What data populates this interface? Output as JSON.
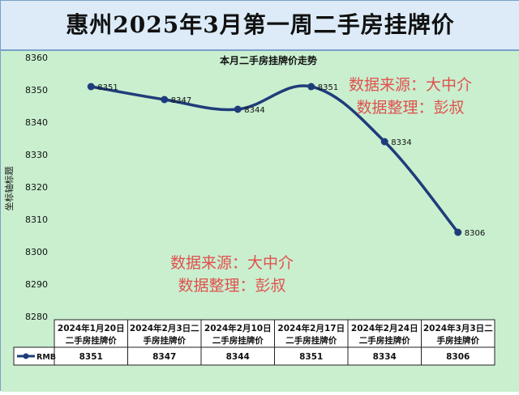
{
  "page": {
    "title": "惠州2025年3月第一周二手房挂牌价"
  },
  "watermarks": [
    {
      "line1": "数据来源：大中介",
      "line2": "数据整理：彭叔"
    },
    {
      "line1": "数据来源：大中介",
      "line2": "数据整理：彭叔"
    }
  ],
  "colors": {
    "line": "#1f3c7a",
    "background": "#c9efcf",
    "header_bg": "#dcebf7",
    "watermark": "#e0514d"
  },
  "chart_data": {
    "type": "line",
    "title": "本月二手房挂牌价走势",
    "ylabel": "坐标轴标题",
    "xlabel": "",
    "ylim": [
      8280,
      8360
    ],
    "yticks": [
      8280,
      8290,
      8300,
      8310,
      8320,
      8330,
      8340,
      8350,
      8360
    ],
    "grid": false,
    "legend": "table-left",
    "categories": [
      [
        "2024年1月20日",
        "二手房挂牌价"
      ],
      [
        "2024年2月3日二",
        "手房挂牌价"
      ],
      [
        "2024年2月10日",
        "二手房挂牌价"
      ],
      [
        "2024年2月17日",
        "二手房挂牌价"
      ],
      [
        "2024年2月24日",
        "二手房挂牌价"
      ],
      [
        "2024年3月3日二",
        "手房挂牌价"
      ]
    ],
    "series": [
      {
        "name": "RMB",
        "values": [
          8351,
          8347,
          8344,
          8351,
          8334,
          8306
        ]
      }
    ]
  }
}
